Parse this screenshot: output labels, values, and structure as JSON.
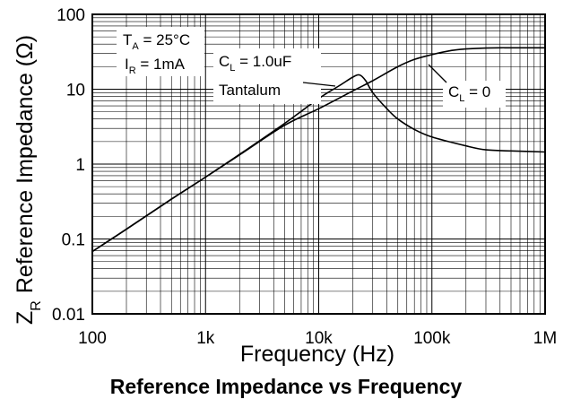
{
  "chart_data": {
    "type": "line",
    "title": "Reference Impedance vs Frequency",
    "xlabel": "Frequency (Hz)",
    "ylabel": "Z_R Reference Impedance (Ω)",
    "xlabel_text": "Frequency (Hz)",
    "ylabel_main": "Reference Impedance (Ω)",
    "ylabel_symbol": "Z",
    "ylabel_sub": "R",
    "xscale": "log",
    "yscale": "log",
    "xlim": [
      100,
      1000000
    ],
    "ylim": [
      0.01,
      100
    ],
    "grid": true,
    "xticks": [
      {
        "value": 100,
        "label": "100"
      },
      {
        "value": 1000,
        "label": "1k"
      },
      {
        "value": 10000,
        "label": "10k"
      },
      {
        "value": 100000,
        "label": "100k"
      },
      {
        "value": 1000000,
        "label": "1M"
      }
    ],
    "yticks": [
      {
        "value": 0.01,
        "label": "0.01"
      },
      {
        "value": 0.1,
        "label": "0.1"
      },
      {
        "value": 1,
        "label": "1"
      },
      {
        "value": 10,
        "label": "10"
      },
      {
        "value": 100,
        "label": "100"
      }
    ],
    "conditions": {
      "ta": {
        "sym": "T",
        "sub": "A",
        "rest": " = 25°C"
      },
      "ir": {
        "sym": "I",
        "sub": "R",
        "rest": " = 1mA"
      }
    },
    "series": [
      {
        "name": "C_L = 1.0uF Tantalum",
        "label_parts": {
          "sym": "C",
          "sub": "L",
          "rest": " = 1.0uF",
          "line2": "Tantalum"
        },
        "x": [
          100,
          200,
          500,
          1000,
          2000,
          5000,
          10000,
          15000,
          20000,
          23000,
          26000,
          30000,
          40000,
          50000,
          70000,
          100000,
          200000,
          300000,
          500000,
          1000000
        ],
        "y": [
          0.068,
          0.135,
          0.34,
          0.67,
          1.35,
          3.5,
          7.5,
          11,
          14.5,
          15.5,
          13,
          9,
          5.5,
          4.0,
          2.9,
          2.3,
          1.75,
          1.55,
          1.5,
          1.45
        ]
      },
      {
        "name": "C_L = 0",
        "label_parts": {
          "sym": "C",
          "sub": "L",
          "rest": " = 0"
        },
        "x": [
          100,
          200,
          500,
          1000,
          2000,
          5000,
          10000,
          20000,
          30000,
          50000,
          70000,
          100000,
          150000,
          200000,
          300000,
          400000,
          500000,
          1000000
        ],
        "y": [
          0.068,
          0.135,
          0.34,
          0.67,
          1.33,
          3.3,
          5.5,
          9.5,
          13,
          20,
          25,
          29,
          33,
          34.5,
          35.5,
          35.8,
          35.8,
          35.8
        ]
      }
    ]
  }
}
